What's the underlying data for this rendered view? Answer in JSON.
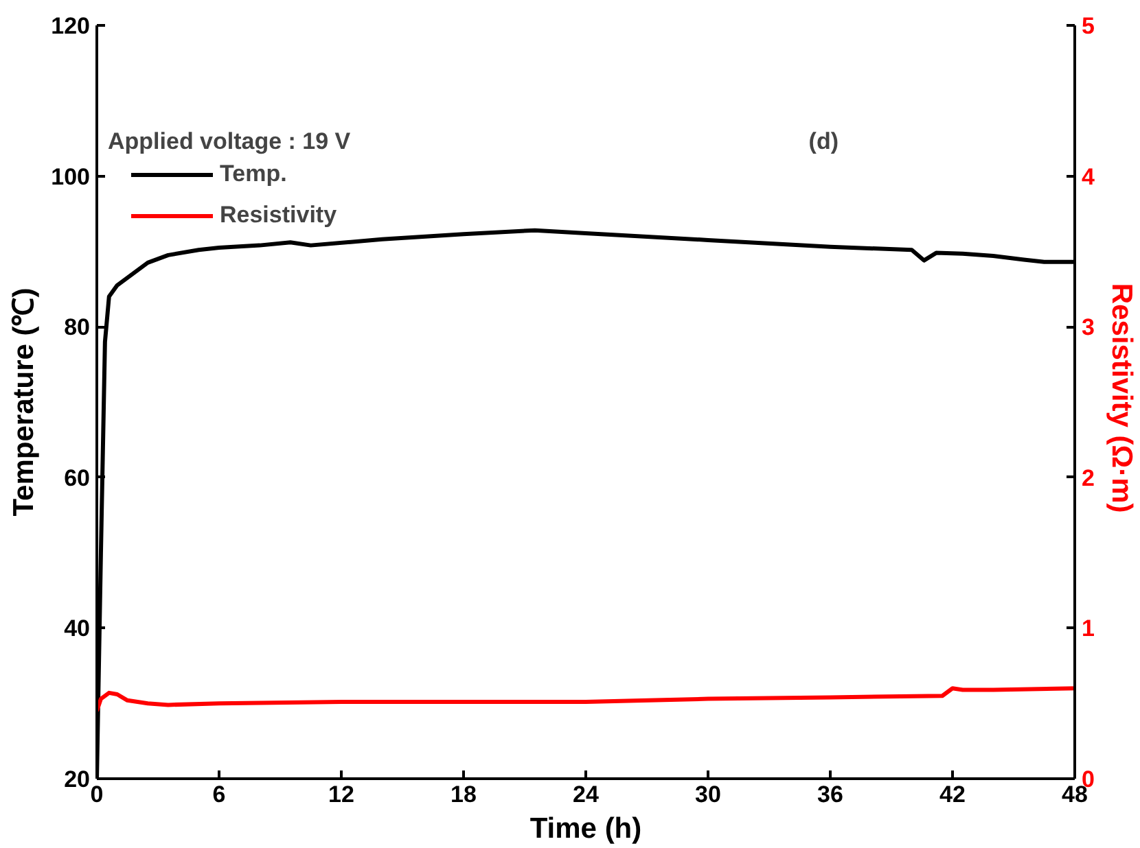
{
  "chart_data": {
    "type": "line",
    "xlabel": "Time (h)",
    "ylabel": "Temperature (℃)",
    "y2label": "Resistivity  (Ω·m)",
    "xlim": [
      0,
      48
    ],
    "xticks": [
      0,
      6,
      12,
      18,
      24,
      30,
      36,
      42,
      48
    ],
    "ylim": [
      20,
      120
    ],
    "yticks": [
      20,
      40,
      60,
      80,
      100,
      120
    ],
    "y2lim": [
      0,
      5
    ],
    "y2ticks": [
      0,
      1,
      2,
      3,
      4,
      5
    ],
    "legend": "top left",
    "grid": false,
    "marker": "none",
    "line_style": "solid",
    "annotations": [
      "Applied voltage : 19 V",
      "(d)"
    ],
    "series": [
      {
        "name": "Temp.",
        "color": "#000000",
        "x": [
          0,
          0.2,
          0.4,
          0.6,
          1,
          1.5,
          2.5,
          3.5,
          5,
          6,
          8,
          9.5,
          10.5,
          14,
          18,
          21.5,
          24,
          30,
          36,
          40,
          40.6,
          41.2,
          42.5,
          44,
          45.5,
          46.5,
          48
        ],
        "values": [
          20,
          50,
          78,
          84,
          85.5,
          86.5,
          88.5,
          89.5,
          90.2,
          90.5,
          90.8,
          91.2,
          90.8,
          91.6,
          92.3,
          92.8,
          92.4,
          91.5,
          90.6,
          90.2,
          88.8,
          89.8,
          89.7,
          89.4,
          88.9,
          88.6,
          88.6
        ]
      },
      {
        "name": "Resistivity",
        "color": "#ff0000",
        "axis": "y2",
        "x": [
          0,
          0.2,
          0.6,
          1,
          1.5,
          2.5,
          3.5,
          6,
          12,
          18,
          24,
          30,
          36,
          41.5,
          42,
          42.5,
          44,
          48
        ],
        "values": [
          0.45,
          0.53,
          0.57,
          0.56,
          0.52,
          0.5,
          0.49,
          0.5,
          0.51,
          0.51,
          0.51,
          0.53,
          0.54,
          0.55,
          0.6,
          0.59,
          0.59,
          0.6
        ]
      }
    ]
  }
}
